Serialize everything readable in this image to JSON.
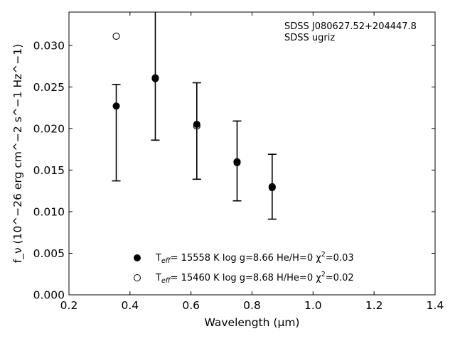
{
  "chart_data": {
    "type": "scatter",
    "xlabel": "Wavelength (μm)",
    "ylabel": "f_ν (10^−26 erg cm^−2 s^−1 Hz^−1)",
    "xlim": [
      0.2,
      1.4
    ],
    "ylim": [
      0.0,
      0.034
    ],
    "x_ticks": [
      "0.2",
      "0.4",
      "0.6",
      "0.8",
      "1.0",
      "1.2",
      "1.4"
    ],
    "y_ticks": [
      "0.000",
      "0.005",
      "0.010",
      "0.015",
      "0.020",
      "0.025",
      "0.030"
    ],
    "grid": false,
    "annotations": [
      "SDSS J080627.52+204447.8",
      "SDSS ugriz"
    ],
    "legend_position": "bottom-center",
    "observed": {
      "x": [
        0.355,
        0.483,
        0.619,
        0.751,
        0.866
      ],
      "y": [
        0.0195,
        0.03,
        0.0197,
        0.0161,
        0.013
      ],
      "yerr": [
        0.0058,
        0.0114,
        0.0058,
        0.0048,
        0.0039
      ]
    },
    "series": [
      {
        "name": "T_eff= 15558 K  log g=8.66  He/H=0  χ²=0.03",
        "marker": "filled-circle",
        "x": [
          0.355,
          0.483,
          0.619,
          0.751,
          0.866
        ],
        "y": [
          0.0227,
          0.026,
          0.0205,
          0.0159,
          0.0129
        ]
      },
      {
        "name": "T_eff= 15460 K  log g=8.68  H/He=0  χ²=0.02",
        "marker": "open-circle",
        "x": [
          0.355,
          0.483,
          0.619,
          0.751,
          0.866
        ],
        "y": [
          0.0311,
          0.0261,
          0.0203,
          0.016,
          0.013
        ]
      }
    ],
    "legend": [
      {
        "label_prefix": "T",
        "label_sub": "eff",
        "label_rest": "= 15558 K  log g=8.66  He/H=0  χ",
        "label_sup": "2",
        "label_end": "=0.03"
      },
      {
        "label_prefix": "T",
        "label_sub": "eff",
        "label_rest": "= 15460 K  log g=8.68  H/He=0  χ",
        "label_sup": "2",
        "label_end": "=0.02"
      }
    ]
  }
}
